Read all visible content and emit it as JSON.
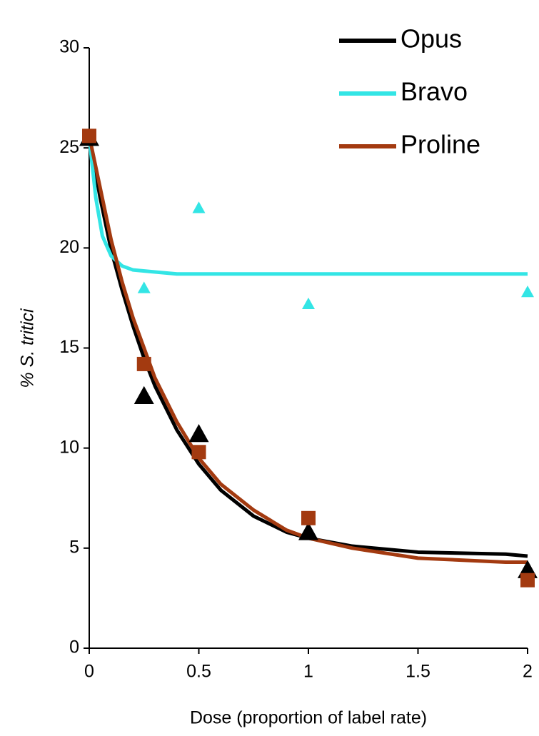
{
  "chart_data": {
    "type": "line",
    "xlabel": "Dose (proportion of label rate)",
    "ylabel": "% S. tritici",
    "xlim": [
      0,
      2
    ],
    "xticks": [
      0,
      0.5,
      1,
      1.5,
      2
    ],
    "ylim": [
      0,
      30
    ],
    "yticks": [
      0,
      5,
      10,
      15,
      20,
      25,
      30
    ],
    "legend": "top-right",
    "series": [
      {
        "name": "Opus",
        "color": "#000000",
        "x": [
          0,
          0.05,
          0.1,
          0.15,
          0.2,
          0.25,
          0.3,
          0.4,
          0.5,
          0.6,
          0.75,
          0.9,
          1,
          1.2,
          1.5,
          1.9,
          2
        ],
        "values": [
          25.5,
          22.5,
          19.9,
          17.9,
          16.1,
          14.5,
          13.1,
          10.9,
          9.2,
          7.9,
          6.6,
          5.8,
          5.5,
          5.1,
          4.8,
          4.7,
          4.6
        ],
        "points": {
          "marker": "triangle",
          "x": [
            0,
            0.25,
            0.5,
            1,
            2
          ],
          "values": [
            25.5,
            12.6,
            10.7,
            5.8,
            3.9
          ]
        }
      },
      {
        "name": "Bravo",
        "color": "#33e5e5",
        "x": [
          0,
          0.03,
          0.06,
          0.1,
          0.15,
          0.2,
          0.3,
          0.4,
          1,
          2
        ],
        "values": [
          25.5,
          22.5,
          20.6,
          19.6,
          19.1,
          18.9,
          18.8,
          18.7,
          18.7,
          18.7
        ],
        "points": {
          "marker": "triangle",
          "x": [
            0.25,
            0.5,
            1,
            2
          ],
          "values": [
            18.0,
            22.0,
            17.2,
            17.8
          ]
        }
      },
      {
        "name": "Proline",
        "color": "#a33a10",
        "x": [
          0,
          0.05,
          0.1,
          0.15,
          0.2,
          0.25,
          0.3,
          0.4,
          0.5,
          0.6,
          0.75,
          0.9,
          1,
          1.2,
          1.5,
          1.9,
          2
        ],
        "values": [
          25.6,
          23.0,
          20.4,
          18.3,
          16.5,
          15.0,
          13.5,
          11.3,
          9.5,
          8.2,
          6.9,
          5.9,
          5.5,
          5.0,
          4.5,
          4.3,
          4.3
        ],
        "points": {
          "marker": "square",
          "x": [
            0,
            0.25,
            0.5,
            1,
            2
          ],
          "values": [
            25.6,
            14.2,
            9.8,
            6.5,
            3.4
          ]
        }
      }
    ]
  }
}
